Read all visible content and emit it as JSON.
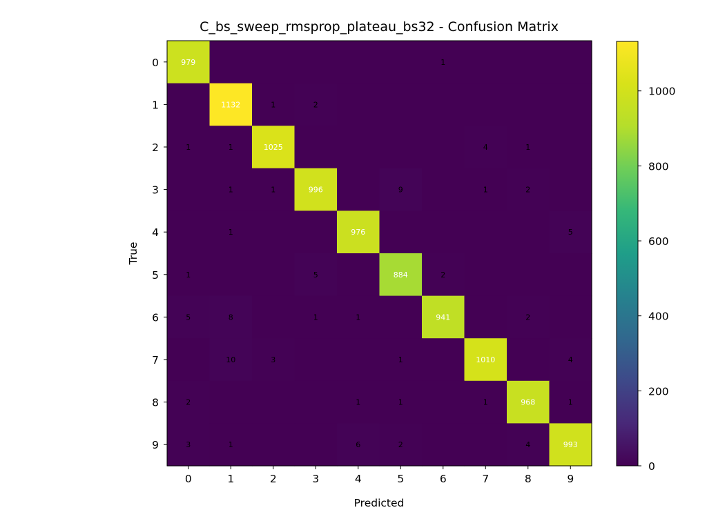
{
  "chart_data": {
    "type": "heatmap",
    "title": "C_bs_sweep_rmsprop_plateau_bs32 - Confusion Matrix",
    "xlabel": "Predicted",
    "ylabel": "True",
    "x_categories": [
      "0",
      "1",
      "2",
      "3",
      "4",
      "5",
      "6",
      "7",
      "8",
      "9"
    ],
    "y_categories": [
      "0",
      "1",
      "2",
      "3",
      "4",
      "5",
      "6",
      "7",
      "8",
      "9"
    ],
    "matrix": [
      [
        979,
        0,
        0,
        0,
        0,
        0,
        1,
        0,
        0,
        0
      ],
      [
        0,
        1132,
        1,
        2,
        0,
        0,
        0,
        0,
        0,
        0
      ],
      [
        1,
        1,
        1025,
        0,
        0,
        0,
        0,
        4,
        1,
        0
      ],
      [
        0,
        1,
        1,
        996,
        0,
        9,
        0,
        1,
        2,
        0
      ],
      [
        0,
        1,
        0,
        0,
        976,
        0,
        0,
        0,
        0,
        5
      ],
      [
        1,
        0,
        0,
        5,
        0,
        884,
        2,
        0,
        0,
        0
      ],
      [
        5,
        8,
        0,
        1,
        1,
        0,
        941,
        0,
        2,
        0
      ],
      [
        0,
        10,
        3,
        0,
        0,
        1,
        0,
        1010,
        0,
        4
      ],
      [
        2,
        0,
        0,
        0,
        1,
        1,
        0,
        1,
        968,
        1
      ],
      [
        3,
        1,
        0,
        0,
        6,
        2,
        0,
        0,
        4,
        993
      ]
    ],
    "colormap": "viridis",
    "value_range": [
      0,
      1132
    ],
    "colorbar_ticks": [
      "0",
      "200",
      "400",
      "600",
      "800",
      "1000"
    ],
    "colorbar_tick_values": [
      0,
      200,
      400,
      600,
      800,
      1000
    ],
    "hide_zero_annotations": true,
    "grid": false
  }
}
